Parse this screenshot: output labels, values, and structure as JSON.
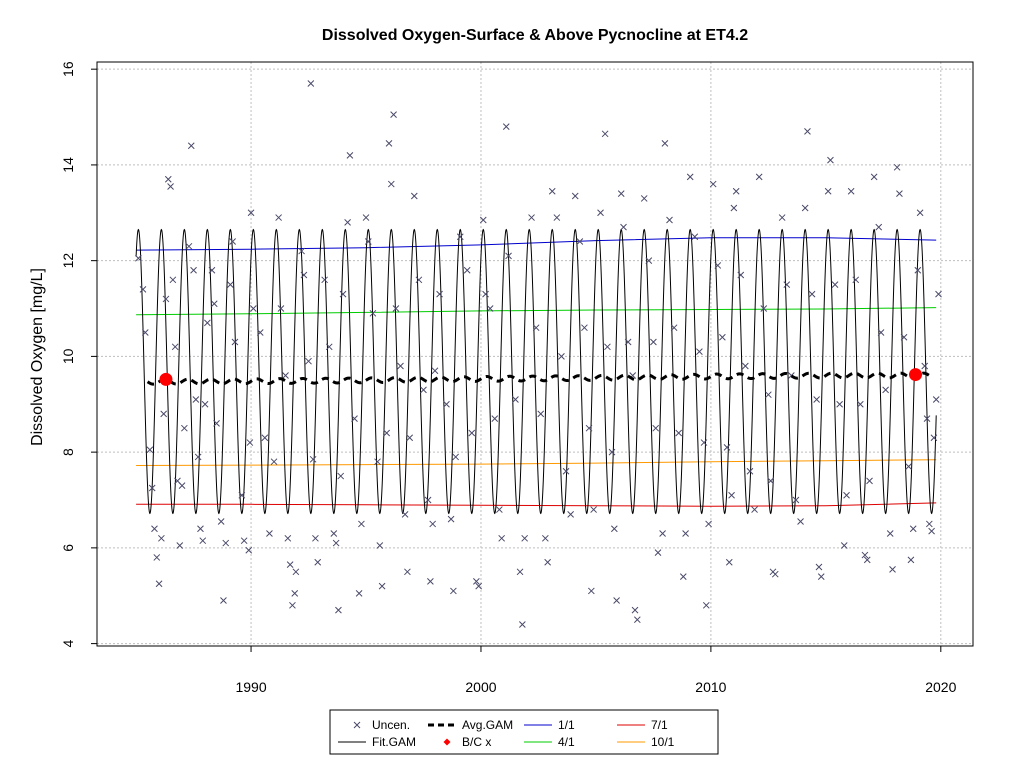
{
  "chart_data": {
    "type": "scatter",
    "title": "Dissolved Oxygen-Surface & Above Pycnocline at ET4.2",
    "xlabel": "",
    "ylabel": "Dissolved Oxygen [mg/L]",
    "xlim": [
      1983.3,
      2021.4
    ],
    "ylim": [
      3.95,
      16.15
    ],
    "xticks": [
      1990,
      2000,
      2010,
      2020
    ],
    "yticks": [
      4,
      6,
      8,
      10,
      12,
      14,
      16
    ],
    "grid": true,
    "legend_position": "bottom",
    "legend": [
      {
        "label": "Uncen.",
        "symbol": "x",
        "color": "#4a4a6a"
      },
      {
        "label": "Fit.GAM",
        "symbol": "line",
        "color": "#000000"
      },
      {
        "label": "Avg.GAM",
        "symbol": "dashed-line",
        "color": "#000000"
      },
      {
        "label": "B/C x",
        "symbol": "diamond",
        "color": "#ff0000"
      },
      {
        "label": "1/1",
        "symbol": "line",
        "color": "#0000cc"
      },
      {
        "label": "4/1",
        "symbol": "line",
        "color": "#00cc00"
      },
      {
        "label": "7/1",
        "symbol": "line",
        "color": "#dd0000"
      },
      {
        "label": "10/1",
        "symbol": "line",
        "color": "#ff9900"
      }
    ],
    "colors": {
      "uncen": "#4a4a6a",
      "fit_gam": "#000000",
      "avg_gam": "#000000",
      "bc_marker": "#ff0000",
      "jan1": "#0000cc",
      "apr1": "#00cc00",
      "jul1": "#dd0000",
      "oct1": "#ff9900"
    },
    "series": [
      {
        "name": "1/1",
        "key": "jan1",
        "x": [
          1985,
          1990,
          1995,
          2000,
          2005,
          2010,
          2015,
          2019.8
        ],
        "y": [
          12.22,
          12.24,
          12.27,
          12.33,
          12.42,
          12.48,
          12.48,
          12.43
        ]
      },
      {
        "name": "4/1",
        "key": "apr1",
        "x": [
          1985,
          1990,
          1995,
          2000,
          2005,
          2010,
          2015,
          2019.8
        ],
        "y": [
          10.87,
          10.89,
          10.92,
          10.95,
          10.97,
          10.98,
          10.99,
          11.02
        ]
      },
      {
        "name": "10/1",
        "key": "oct1",
        "x": [
          1985,
          1990,
          1995,
          2000,
          2005,
          2010,
          2015,
          2019.8
        ],
        "y": [
          7.72,
          7.73,
          7.74,
          7.75,
          7.77,
          7.8,
          7.82,
          7.84
        ]
      },
      {
        "name": "7/1",
        "key": "jul1",
        "x": [
          1985,
          1990,
          1995,
          2000,
          2005,
          2010,
          2015,
          2019.8
        ],
        "y": [
          6.91,
          6.91,
          6.9,
          6.89,
          6.88,
          6.87,
          6.88,
          6.94
        ]
      },
      {
        "name": "Avg.GAM",
        "key": "avg",
        "x": [
          1985.5,
          1990,
          1995,
          2000,
          2005,
          2010,
          2015,
          2019.6
        ],
        "y": [
          9.47,
          9.48,
          9.5,
          9.53,
          9.55,
          9.58,
          9.6,
          9.6
        ]
      }
    ],
    "fit_gam": {
      "start": 1985.0,
      "end": 2019.8,
      "peak": 12.65,
      "trough": 6.72,
      "peak_phase": 0.1
    },
    "bc_points": [
      {
        "x": 1986.3,
        "y": 9.52
      },
      {
        "x": 2018.9,
        "y": 9.62
      }
    ],
    "uncen_points": [
      [
        1985.1,
        12.05
      ],
      [
        1985.3,
        11.4
      ],
      [
        1985.4,
        10.5
      ],
      [
        1985.6,
        8.05
      ],
      [
        1985.7,
        7.25
      ],
      [
        1985.8,
        6.4
      ],
      [
        1985.9,
        5.8
      ],
      [
        1986.0,
        5.25
      ],
      [
        1986.1,
        6.2
      ],
      [
        1986.2,
        8.8
      ],
      [
        1986.3,
        11.2
      ],
      [
        1986.4,
        13.7
      ],
      [
        1986.5,
        13.55
      ],
      [
        1986.6,
        11.6
      ],
      [
        1986.7,
        10.2
      ],
      [
        1986.8,
        7.4
      ],
      [
        1986.9,
        6.05
      ],
      [
        1987.0,
        7.3
      ],
      [
        1987.1,
        8.5
      ],
      [
        1987.3,
        12.3
      ],
      [
        1987.4,
        14.4
      ],
      [
        1987.5,
        11.8
      ],
      [
        1987.6,
        9.1
      ],
      [
        1987.7,
        7.9
      ],
      [
        1987.8,
        6.4
      ],
      [
        1987.9,
        6.15
      ],
      [
        1988.0,
        9.0
      ],
      [
        1988.1,
        10.7
      ],
      [
        1988.3,
        11.8
      ],
      [
        1988.4,
        11.1
      ],
      [
        1988.5,
        8.6
      ],
      [
        1988.7,
        6.55
      ],
      [
        1988.8,
        4.9
      ],
      [
        1988.9,
        6.1
      ],
      [
        1989.1,
        11.5
      ],
      [
        1989.2,
        12.4
      ],
      [
        1989.3,
        10.3
      ],
      [
        1989.6,
        7.1
      ],
      [
        1989.7,
        6.15
      ],
      [
        1989.9,
        5.95
      ],
      [
        1989.95,
        8.2
      ],
      [
        1990.0,
        13.0
      ],
      [
        1990.1,
        11.0
      ],
      [
        1990.4,
        10.5
      ],
      [
        1990.6,
        8.3
      ],
      [
        1990.8,
        6.3
      ],
      [
        1991.0,
        7.8
      ],
      [
        1991.2,
        12.9
      ],
      [
        1991.3,
        11.0
      ],
      [
        1991.5,
        9.6
      ],
      [
        1991.6,
        6.2
      ],
      [
        1991.7,
        5.65
      ],
      [
        1991.8,
        4.8
      ],
      [
        1991.9,
        5.05
      ],
      [
        1991.95,
        5.5
      ],
      [
        1992.2,
        12.2
      ],
      [
        1992.3,
        11.7
      ],
      [
        1992.5,
        9.9
      ],
      [
        1992.6,
        15.7
      ],
      [
        1992.7,
        7.85
      ],
      [
        1992.8,
        6.2
      ],
      [
        1992.9,
        5.7
      ],
      [
        1993.2,
        11.6
      ],
      [
        1993.4,
        10.2
      ],
      [
        1993.6,
        6.3
      ],
      [
        1993.7,
        6.1
      ],
      [
        1993.8,
        4.7
      ],
      [
        1993.9,
        7.5
      ],
      [
        1994.0,
        11.3
      ],
      [
        1994.2,
        12.8
      ],
      [
        1994.3,
        14.2
      ],
      [
        1994.5,
        8.7
      ],
      [
        1994.7,
        5.05
      ],
      [
        1994.8,
        6.5
      ],
      [
        1995.0,
        12.9
      ],
      [
        1995.1,
        12.4
      ],
      [
        1995.3,
        10.9
      ],
      [
        1995.5,
        7.8
      ],
      [
        1995.6,
        6.05
      ],
      [
        1995.7,
        5.2
      ],
      [
        1995.9,
        8.4
      ],
      [
        1996.0,
        14.45
      ],
      [
        1996.1,
        13.6
      ],
      [
        1996.2,
        15.05
      ],
      [
        1996.3,
        11.0
      ],
      [
        1996.5,
        9.8
      ],
      [
        1996.7,
        6.7
      ],
      [
        1996.8,
        5.5
      ],
      [
        1996.9,
        8.3
      ],
      [
        1997.1,
        13.35
      ],
      [
        1997.3,
        11.6
      ],
      [
        1997.5,
        9.3
      ],
      [
        1997.7,
        7.0
      ],
      [
        1997.8,
        5.3
      ],
      [
        1997.9,
        6.5
      ],
      [
        1998.0,
        9.7
      ],
      [
        1998.2,
        11.3
      ],
      [
        1998.5,
        9.0
      ],
      [
        1998.7,
        6.6
      ],
      [
        1998.8,
        5.1
      ],
      [
        1998.9,
        7.9
      ],
      [
        1999.1,
        12.5
      ],
      [
        1999.4,
        11.8
      ],
      [
        1999.6,
        8.4
      ],
      [
        1999.8,
        5.3
      ],
      [
        1999.9,
        5.2
      ],
      [
        2000.1,
        12.85
      ],
      [
        2000.2,
        11.3
      ],
      [
        2000.4,
        11.0
      ],
      [
        2000.6,
        8.7
      ],
      [
        2000.8,
        6.8
      ],
      [
        2000.9,
        6.2
      ],
      [
        2001.1,
        14.8
      ],
      [
        2001.2,
        12.1
      ],
      [
        2001.5,
        9.1
      ],
      [
        2001.7,
        5.5
      ],
      [
        2001.8,
        4.4
      ],
      [
        2001.9,
        6.2
      ],
      [
        2002.2,
        12.9
      ],
      [
        2002.4,
        10.6
      ],
      [
        2002.6,
        8.8
      ],
      [
        2002.8,
        6.2
      ],
      [
        2002.9,
        5.7
      ],
      [
        2003.1,
        13.45
      ],
      [
        2003.3,
        12.9
      ],
      [
        2003.5,
        10.0
      ],
      [
        2003.7,
        7.6
      ],
      [
        2003.9,
        6.7
      ],
      [
        2004.1,
        13.35
      ],
      [
        2004.3,
        12.4
      ],
      [
        2004.5,
        10.6
      ],
      [
        2004.7,
        8.5
      ],
      [
        2004.8,
        5.1
      ],
      [
        2004.9,
        6.8
      ],
      [
        2005.2,
        13.0
      ],
      [
        2005.4,
        14.65
      ],
      [
        2005.5,
        10.2
      ],
      [
        2005.7,
        8.0
      ],
      [
        2005.8,
        6.4
      ],
      [
        2005.9,
        4.9
      ],
      [
        2006.1,
        13.4
      ],
      [
        2006.2,
        12.7
      ],
      [
        2006.4,
        10.3
      ],
      [
        2006.6,
        9.6
      ],
      [
        2006.7,
        4.7
      ],
      [
        2006.8,
        4.5
      ],
      [
        2007.1,
        13.3
      ],
      [
        2007.3,
        12.0
      ],
      [
        2007.5,
        10.3
      ],
      [
        2007.6,
        8.5
      ],
      [
        2007.7,
        5.9
      ],
      [
        2007.9,
        6.3
      ],
      [
        2008.0,
        14.45
      ],
      [
        2008.2,
        12.85
      ],
      [
        2008.4,
        10.6
      ],
      [
        2008.6,
        8.4
      ],
      [
        2008.8,
        5.4
      ],
      [
        2008.9,
        6.3
      ],
      [
        2009.1,
        13.75
      ],
      [
        2009.3,
        12.5
      ],
      [
        2009.5,
        10.1
      ],
      [
        2009.7,
        8.2
      ],
      [
        2009.8,
        4.8
      ],
      [
        2009.9,
        6.5
      ],
      [
        2010.1,
        13.6
      ],
      [
        2010.3,
        11.9
      ],
      [
        2010.5,
        10.4
      ],
      [
        2010.7,
        8.1
      ],
      [
        2010.8,
        5.7
      ],
      [
        2010.9,
        7.1
      ],
      [
        2011.0,
        13.1
      ],
      [
        2011.1,
        13.45
      ],
      [
        2011.3,
        11.7
      ],
      [
        2011.5,
        9.8
      ],
      [
        2011.7,
        7.6
      ],
      [
        2011.9,
        6.8
      ],
      [
        2012.1,
        13.75
      ],
      [
        2012.3,
        11.0
      ],
      [
        2012.5,
        9.2
      ],
      [
        2012.6,
        7.4
      ],
      [
        2012.7,
        5.5
      ],
      [
        2012.8,
        5.45
      ],
      [
        2013.1,
        12.9
      ],
      [
        2013.3,
        11.5
      ],
      [
        2013.5,
        9.6
      ],
      [
        2013.7,
        7.0
      ],
      [
        2013.9,
        6.55
      ],
      [
        2014.1,
        13.1
      ],
      [
        2014.2,
        14.7
      ],
      [
        2014.4,
        11.3
      ],
      [
        2014.6,
        9.1
      ],
      [
        2014.7,
        5.6
      ],
      [
        2014.8,
        5.4
      ],
      [
        2015.1,
        13.45
      ],
      [
        2015.2,
        14.1
      ],
      [
        2015.4,
        11.5
      ],
      [
        2015.6,
        9.0
      ],
      [
        2015.8,
        6.05
      ],
      [
        2015.9,
        7.1
      ],
      [
        2016.1,
        13.45
      ],
      [
        2016.3,
        11.6
      ],
      [
        2016.5,
        9.0
      ],
      [
        2016.7,
        5.85
      ],
      [
        2016.8,
        5.75
      ],
      [
        2016.9,
        7.4
      ],
      [
        2017.1,
        13.75
      ],
      [
        2017.3,
        12.7
      ],
      [
        2017.4,
        10.5
      ],
      [
        2017.6,
        9.3
      ],
      [
        2017.8,
        6.3
      ],
      [
        2017.9,
        5.55
      ],
      [
        2018.1,
        13.95
      ],
      [
        2018.2,
        13.4
      ],
      [
        2018.4,
        10.4
      ],
      [
        2018.6,
        7.7
      ],
      [
        2018.7,
        5.75
      ],
      [
        2018.8,
        6.4
      ],
      [
        2019.0,
        11.8
      ],
      [
        2019.1,
        13.0
      ],
      [
        2019.3,
        9.8
      ],
      [
        2019.4,
        8.7
      ],
      [
        2019.5,
        6.5
      ],
      [
        2019.6,
        6.35
      ],
      [
        2019.7,
        8.3
      ],
      [
        2019.8,
        9.1
      ],
      [
        2019.9,
        11.3
      ]
    ]
  }
}
